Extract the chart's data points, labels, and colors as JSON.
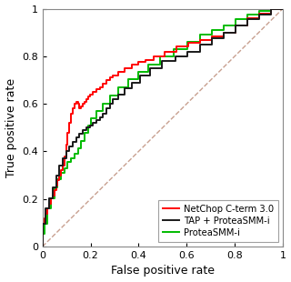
{
  "title": "",
  "xlabel": "False positive rate",
  "ylabel": "True positive rate",
  "xlim": [
    0,
    1
  ],
  "ylim": [
    0,
    1
  ],
  "xticks": [
    0,
    0.2,
    0.4,
    0.6,
    0.8,
    1.0
  ],
  "yticks": [
    0,
    0.2,
    0.4,
    0.6,
    0.8,
    1.0
  ],
  "xtick_labels": [
    "0",
    "0.2",
    "0.4",
    "0.6",
    "0.8",
    "1"
  ],
  "ytick_labels": [
    "0",
    "0.2",
    "0.4",
    "0.6",
    "0.8",
    "1"
  ],
  "diagonal_color": "#c8a090",
  "legend_labels": [
    "NetChop C-term 3.0",
    "TAP + ProteaSMM-i",
    "ProteaSMM-i"
  ],
  "legend_colors": [
    "#ff0000",
    "#1a1a1a",
    "#00bb00"
  ],
  "line_width": 1.4,
  "figsize": [
    3.2,
    3.1
  ],
  "dpi": 100,
  "red_x": [
    0.0,
    0.0,
    0.007,
    0.007,
    0.014,
    0.014,
    0.021,
    0.021,
    0.028,
    0.028,
    0.035,
    0.035,
    0.042,
    0.042,
    0.049,
    0.049,
    0.056,
    0.056,
    0.063,
    0.063,
    0.07,
    0.07,
    0.077,
    0.077,
    0.084,
    0.084,
    0.091,
    0.091,
    0.098,
    0.098,
    0.105,
    0.105,
    0.112,
    0.112,
    0.119,
    0.119,
    0.126,
    0.126,
    0.133,
    0.133,
    0.14,
    0.14,
    0.147,
    0.147,
    0.154,
    0.154,
    0.161,
    0.161,
    0.168,
    0.168,
    0.175,
    0.175,
    0.182,
    0.182,
    0.189,
    0.189,
    0.196,
    0.196,
    0.21,
    0.21,
    0.224,
    0.224,
    0.238,
    0.238,
    0.252,
    0.252,
    0.266,
    0.266,
    0.28,
    0.28,
    0.294,
    0.294,
    0.315,
    0.315,
    0.343,
    0.343,
    0.371,
    0.371,
    0.399,
    0.399,
    0.427,
    0.427,
    0.462,
    0.462,
    0.51,
    0.51,
    0.559,
    0.559,
    0.608,
    0.608,
    0.657,
    0.657,
    0.706,
    0.706,
    0.755,
    0.755,
    0.804,
    0.804,
    0.853,
    0.853,
    0.902,
    0.902,
    0.951,
    0.951,
    1.0
  ],
  "red_y": [
    0.0,
    0.097,
    0.097,
    0.118,
    0.118,
    0.139,
    0.139,
    0.16,
    0.16,
    0.181,
    0.181,
    0.202,
    0.202,
    0.216,
    0.216,
    0.237,
    0.237,
    0.258,
    0.258,
    0.279,
    0.279,
    0.3,
    0.3,
    0.32,
    0.32,
    0.34,
    0.34,
    0.38,
    0.38,
    0.43,
    0.43,
    0.48,
    0.48,
    0.52,
    0.52,
    0.56,
    0.56,
    0.58,
    0.58,
    0.6,
    0.6,
    0.61,
    0.61,
    0.6,
    0.6,
    0.58,
    0.58,
    0.59,
    0.59,
    0.6,
    0.6,
    0.61,
    0.61,
    0.62,
    0.62,
    0.63,
    0.63,
    0.64,
    0.64,
    0.65,
    0.65,
    0.66,
    0.66,
    0.67,
    0.67,
    0.685,
    0.685,
    0.7,
    0.7,
    0.71,
    0.71,
    0.72,
    0.72,
    0.735,
    0.735,
    0.75,
    0.75,
    0.765,
    0.765,
    0.775,
    0.775,
    0.785,
    0.785,
    0.8,
    0.8,
    0.82,
    0.82,
    0.84,
    0.84,
    0.855,
    0.855,
    0.87,
    0.87,
    0.885,
    0.885,
    0.9,
    0.9,
    0.93,
    0.93,
    0.96,
    0.96,
    0.98,
    0.98,
    1.0,
    1.0
  ],
  "black_x": [
    0.0,
    0.0,
    0.014,
    0.014,
    0.028,
    0.028,
    0.042,
    0.042,
    0.056,
    0.056,
    0.07,
    0.07,
    0.084,
    0.084,
    0.098,
    0.098,
    0.112,
    0.112,
    0.126,
    0.126,
    0.14,
    0.14,
    0.154,
    0.154,
    0.168,
    0.168,
    0.182,
    0.182,
    0.196,
    0.196,
    0.21,
    0.21,
    0.224,
    0.224,
    0.238,
    0.238,
    0.252,
    0.252,
    0.266,
    0.266,
    0.28,
    0.28,
    0.294,
    0.294,
    0.315,
    0.315,
    0.343,
    0.343,
    0.371,
    0.371,
    0.406,
    0.406,
    0.448,
    0.448,
    0.497,
    0.497,
    0.552,
    0.552,
    0.601,
    0.601,
    0.657,
    0.657,
    0.706,
    0.706,
    0.755,
    0.755,
    0.804,
    0.804,
    0.853,
    0.853,
    0.902,
    0.902,
    0.951,
    0.951,
    1.0
  ],
  "black_y": [
    0.0,
    0.097,
    0.097,
    0.16,
    0.16,
    0.202,
    0.202,
    0.25,
    0.25,
    0.3,
    0.3,
    0.34,
    0.34,
    0.37,
    0.37,
    0.4,
    0.4,
    0.42,
    0.42,
    0.44,
    0.44,
    0.46,
    0.46,
    0.475,
    0.475,
    0.49,
    0.49,
    0.5,
    0.5,
    0.51,
    0.51,
    0.52,
    0.52,
    0.53,
    0.53,
    0.545,
    0.545,
    0.56,
    0.56,
    0.58,
    0.58,
    0.6,
    0.6,
    0.62,
    0.62,
    0.64,
    0.64,
    0.665,
    0.665,
    0.69,
    0.69,
    0.72,
    0.72,
    0.75,
    0.75,
    0.78,
    0.78,
    0.8,
    0.8,
    0.82,
    0.82,
    0.85,
    0.85,
    0.875,
    0.875,
    0.9,
    0.9,
    0.93,
    0.93,
    0.955,
    0.955,
    0.975,
    0.975,
    1.0,
    1.0
  ],
  "green_x": [
    0.0,
    0.0,
    0.007,
    0.007,
    0.021,
    0.021,
    0.035,
    0.035,
    0.049,
    0.049,
    0.063,
    0.063,
    0.077,
    0.077,
    0.091,
    0.091,
    0.105,
    0.105,
    0.119,
    0.119,
    0.133,
    0.133,
    0.147,
    0.147,
    0.161,
    0.161,
    0.175,
    0.175,
    0.189,
    0.189,
    0.203,
    0.203,
    0.224,
    0.224,
    0.252,
    0.252,
    0.28,
    0.28,
    0.315,
    0.315,
    0.357,
    0.357,
    0.399,
    0.399,
    0.441,
    0.441,
    0.49,
    0.49,
    0.545,
    0.545,
    0.601,
    0.601,
    0.657,
    0.657,
    0.706,
    0.706,
    0.755,
    0.755,
    0.804,
    0.804,
    0.853,
    0.853,
    0.902,
    0.902,
    0.951,
    0.951,
    1.0
  ],
  "green_y": [
    0.0,
    0.055,
    0.055,
    0.097,
    0.097,
    0.16,
    0.16,
    0.202,
    0.202,
    0.25,
    0.25,
    0.285,
    0.285,
    0.31,
    0.31,
    0.33,
    0.33,
    0.355,
    0.355,
    0.37,
    0.37,
    0.39,
    0.39,
    0.415,
    0.415,
    0.445,
    0.445,
    0.48,
    0.48,
    0.51,
    0.51,
    0.54,
    0.54,
    0.57,
    0.57,
    0.6,
    0.6,
    0.635,
    0.635,
    0.67,
    0.67,
    0.705,
    0.705,
    0.735,
    0.735,
    0.765,
    0.765,
    0.8,
    0.8,
    0.83,
    0.83,
    0.86,
    0.86,
    0.89,
    0.89,
    0.91,
    0.91,
    0.93,
    0.93,
    0.955,
    0.955,
    0.975,
    0.975,
    0.99,
    0.99,
    1.0,
    1.0
  ]
}
